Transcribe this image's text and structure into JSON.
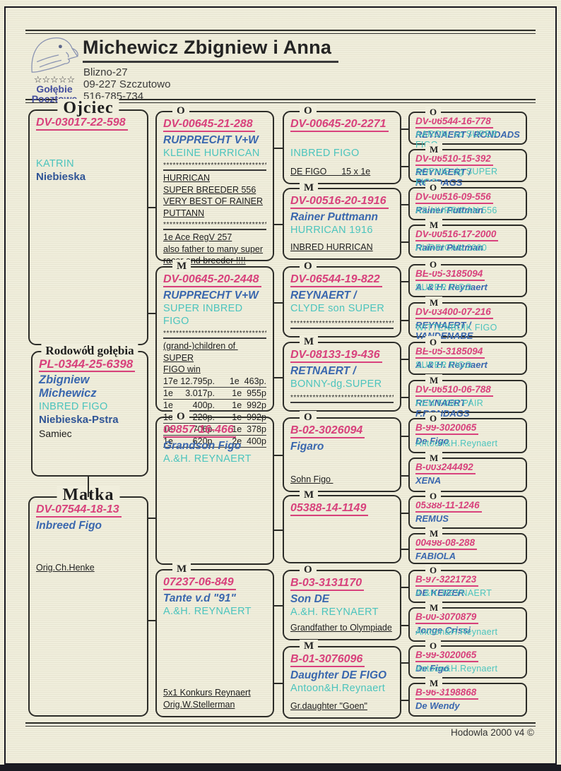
{
  "colors": {
    "ring_pink": "#d8417c",
    "name_blue": "#3a67ae",
    "strain_cyan": "#4cc4bd",
    "dark_blue": "#2f5496",
    "paper": "#f0eedc"
  },
  "header": {
    "name": "Michewicz Zbigniew i Anna",
    "address1": "Blizno-27",
    "address2": "09-227 Szczutowo",
    "phone": "516-785-734",
    "logo_stars": "☆☆☆☆☆",
    "logo_line1": "Gołębie",
    "logo_line2": "Pocztowe"
  },
  "footer": {
    "credit": "Hodowla 2000 v4 ©"
  },
  "father": {
    "title": "Ojciec",
    "ring": "DV-03017-22-598",
    "name": "KATRIN",
    "color": "Niebieska"
  },
  "subject": {
    "title": "Rodowód gołębia",
    "ring": "PL-0344-25-6398",
    "owner": "Zbigniew Michewicz",
    "strain": "INBRED FIGO",
    "color": "Niebieska-Pstra",
    "sex": "Samiec"
  },
  "mother": {
    "title": "Matka",
    "ring": "DV-07544-18-13",
    "name": "Inbreed Figo",
    "note": "Orig.Ch.Henke"
  },
  "gen2": [
    {
      "sex": "O",
      "ring": "DV-00645-21-288",
      "name": "RUPPRECHT V+W",
      "strain": "KLEINE HURRICAN",
      "notes": [
        "*************************************",
        "HURRICAN",
        "SUPER BREEDER 556",
        "VERY BEST OF RAINER",
        "PUTTANN",
        "*************************************",
        "1e Ace RegV 257",
        "also father to many super",
        "racer and breeder !!!!"
      ]
    },
    {
      "sex": "M",
      "ring": "DV-00645-20-2448",
      "name": "RUPPRECHT V+W",
      "strain": "SUPER INBRED FIGO",
      "notes": [
        "*************************************",
        "(grand-)children of SUPER",
        "FIGO win"
      ],
      "results": [
        "17e 12.795p.      1e  463p.",
        "1e     3.017p.       1e  955p.",
        "1e        400p.       1e  992p.",
        "1e        220p.       1e  992p.",
        "1e        706p.       1e  378p.",
        "1e        620p.       2e  400p."
      ]
    },
    {
      "sex": "O",
      "ring": "09857-16-466",
      "name": "Grandson Figo",
      "strain": "A.&H. REYNAERT",
      "notes": []
    },
    {
      "sex": "M",
      "ring": "07237-06-849",
      "name": "Tante v.d \"91\"",
      "strain": "A.&H. REYNAERT",
      "notes": [
        "5x1 Konkurs Reynaert",
        "Orig.W.Stellerman"
      ]
    }
  ],
  "gen3": [
    {
      "sex": "O",
      "ring": "DV-00645-20-2271",
      "name": "",
      "strain": "INBRED FIGO",
      "notes": [
        "DE FIGO      15 x 1e"
      ]
    },
    {
      "sex": "M",
      "ring": "DV-00516-20-1916",
      "name": "Rainer Puttmann",
      "strain": "HURRICAN 1916",
      "notes": [
        "INBRED HURRICAN"
      ]
    },
    {
      "sex": "O",
      "ring": "DV-06544-19-822",
      "name": "REYNAERT /",
      "strain": "CLYDE son SUPER",
      "notes": [
        "*************************************"
      ]
    },
    {
      "sex": "M",
      "ring": "DV-08133-19-436",
      "name": "RETNAERT /",
      "strain": "BONNY-dg.SUPER",
      "notes": [
        "*************************************"
      ]
    },
    {
      "sex": "O",
      "ring": "B-02-3026094",
      "name": "Figaro",
      "strain": "",
      "notes": [
        "Sohn Figo "
      ]
    },
    {
      "sex": "M",
      "ring": "05388-14-1149",
      "name": "",
      "strain": "",
      "notes": []
    },
    {
      "sex": "O",
      "ring": "B-03-3131170",
      "name": "Son DE",
      "strain": "A.&H. REYNAERT",
      "notes": [
        "Grandfather to Olympiade"
      ]
    },
    {
      "sex": "M",
      "ring": "B-01-3076096",
      "name": "Daughter DE FIGO",
      "strain": "Antoon&H.Reynaert",
      "notes": [
        "Gr.daughter \"Goen\""
      ]
    }
  ],
  "gen4": [
    {
      "sex": "O",
      "ring": "DV-06544-16-778",
      "name": "REYNAERT / RONDADS",
      "strain": "AARON- so SUPER FIGO"
    },
    {
      "sex": "M",
      "ring": "DV-06510-15-392",
      "name": "REYNAERT / RONDAGS",
      "strain": "SOPHIE-dg SUPER FIGO"
    },
    {
      "sex": "O",
      "ring": "DV-00516-09-556",
      "name": "Rainer Puttman",
      "strain": "AS-HURRICAN 556"
    },
    {
      "sex": "M",
      "ring": "DV-00516-17-2000",
      "name": "Rainer Puttman",
      "strain": "HURRICAN 2000"
    },
    {
      "sex": "O",
      "ring": "BE-05-3185094",
      "name": "A. & H. Reynaert",
      "strain": "SUPER FIGO"
    },
    {
      "sex": "M",
      "ring": "DV-03400-07-216",
      "name": "REYNAERT / VANDENABE",
      "strain": "WITTENBUIK FIGO"
    },
    {
      "sex": "O",
      "ring": "BE-05-3185094",
      "name": "A. & H. Reynaert",
      "strain": "SUPER FIGO"
    },
    {
      "sex": "M",
      "ring": "DV-06510-06-788",
      "name": "REYNAERT / F.RONDAGS",
      "strain": "HEN FIGO PAIR"
    },
    {
      "sex": "O",
      "ring": "B-99-3020065",
      "name": "De Figo",
      "strain": "Antoon&H.Reynaert"
    },
    {
      "sex": "M",
      "ring": "B-003244492",
      "name": "XENA",
      "strain": ""
    },
    {
      "sex": "O",
      "ring": "05388-11-1246",
      "name": "REMUS",
      "strain": ""
    },
    {
      "sex": "M",
      "ring": "00498-08-288",
      "name": "FABIOLA",
      "strain": ""
    },
    {
      "sex": "O",
      "ring": "B-97-3221723",
      "name": "DE KEIZER",
      "strain": "A.&H. REYNAERT"
    },
    {
      "sex": "M",
      "ring": "B-00-3070879",
      "name": "Jonge Crissi",
      "strain": "Antoon&H.Reynaert"
    },
    {
      "sex": "O",
      "ring": "B-99-3020065",
      "name": "De Figo",
      "strain": "Antoon&H.Reynaert"
    },
    {
      "sex": "M",
      "ring": "B-96-3198868",
      "name": "De Wendy",
      "strain": ""
    }
  ]
}
